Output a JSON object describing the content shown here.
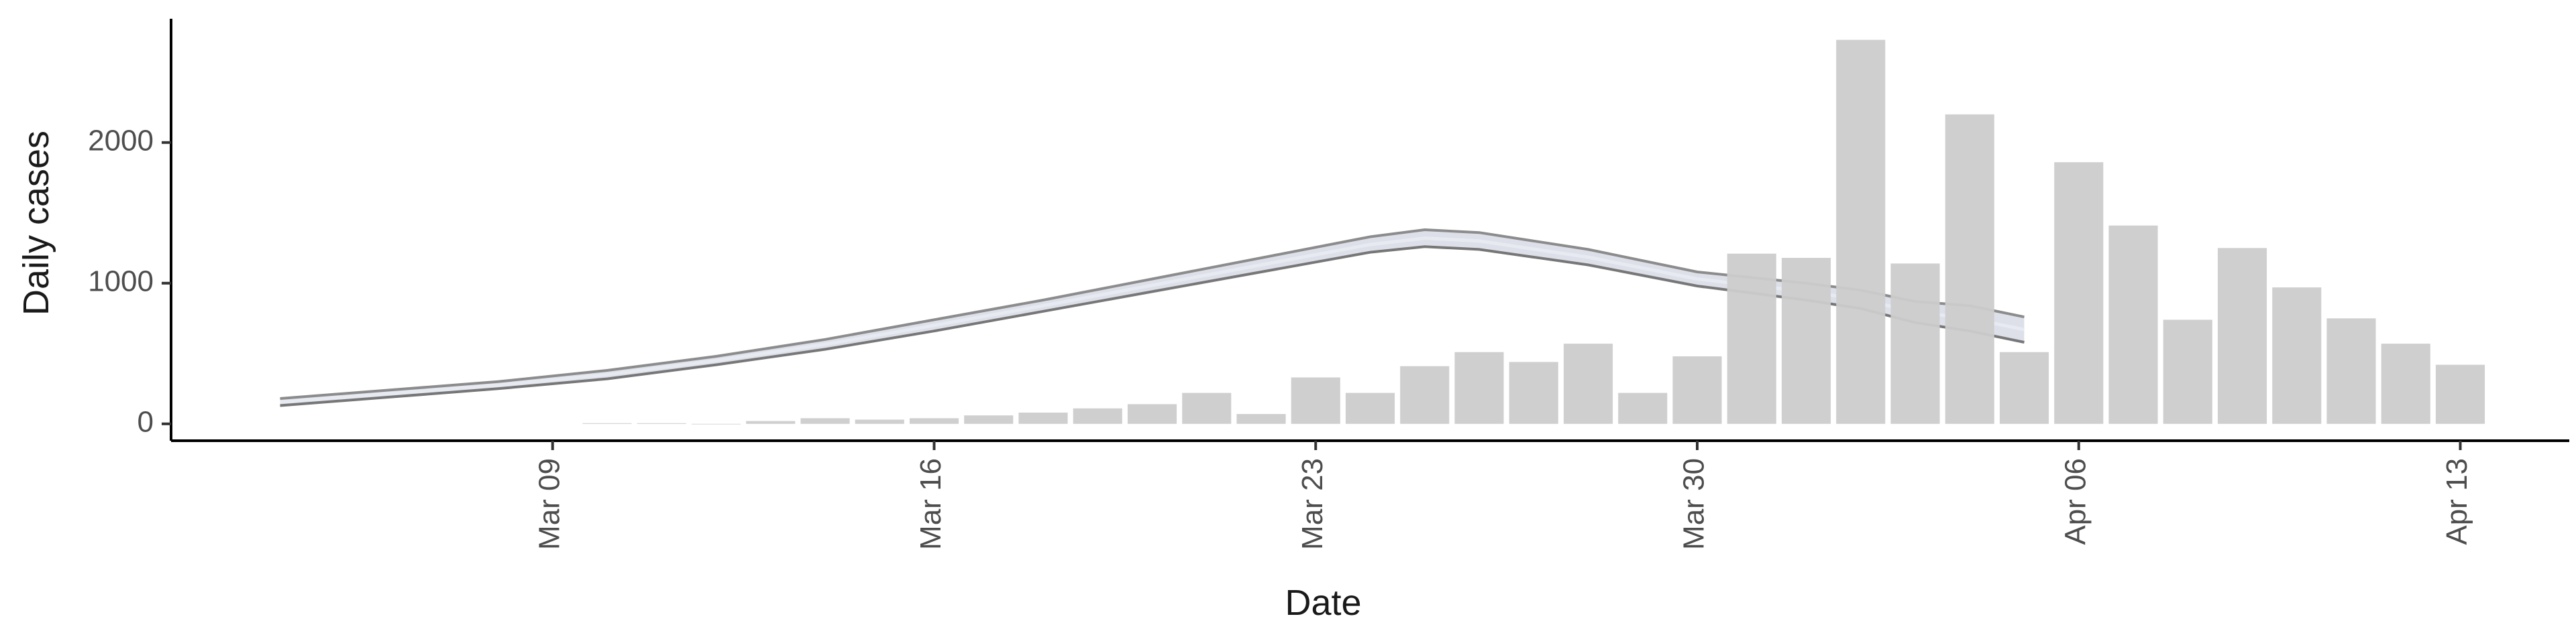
{
  "chart_data": {
    "type": "bar",
    "xlabel": "Date",
    "ylabel": "Daily cases",
    "xlim": [
      "2020-03-02",
      "2020-04-15"
    ],
    "ylim": [
      -120,
      2880
    ],
    "x_ticks": [
      {
        "date": "2020-03-09",
        "label": "Mar 09"
      },
      {
        "date": "2020-03-16",
        "label": "Mar 16"
      },
      {
        "date": "2020-03-23",
        "label": "Mar 23"
      },
      {
        "date": "2020-03-30",
        "label": "Mar 30"
      },
      {
        "date": "2020-04-06",
        "label": "Apr 06"
      },
      {
        "date": "2020-04-13",
        "label": "Apr 13"
      }
    ],
    "y_ticks": [
      0,
      1000,
      2000
    ],
    "grid": false,
    "bar_color": "#cccccc",
    "bars": {
      "dates": [
        "2020-03-10",
        "2020-03-11",
        "2020-03-12",
        "2020-03-13",
        "2020-03-14",
        "2020-03-15",
        "2020-03-16",
        "2020-03-17",
        "2020-03-18",
        "2020-03-19",
        "2020-03-20",
        "2020-03-21",
        "2020-03-22",
        "2020-03-23",
        "2020-03-24",
        "2020-03-25",
        "2020-03-26",
        "2020-03-27",
        "2020-03-28",
        "2020-03-29",
        "2020-03-30",
        "2020-03-31",
        "2020-04-01",
        "2020-04-02",
        "2020-04-03",
        "2020-04-04",
        "2020-04-05",
        "2020-04-06",
        "2020-04-07",
        "2020-04-08",
        "2020-04-09",
        "2020-04-10",
        "2020-04-11",
        "2020-04-12",
        "2020-04-13"
      ],
      "values": [
        5,
        5,
        0,
        20,
        40,
        30,
        40,
        60,
        80,
        110,
        140,
        220,
        70,
        330,
        220,
        410,
        510,
        440,
        570,
        220,
        480,
        1210,
        1180,
        2730,
        1140,
        2200,
        510,
        1860,
        1410,
        740,
        1250,
        970,
        750,
        570,
        420
      ]
    },
    "band": {
      "color": "#d2d6e2",
      "line_color": "#8c8c8c",
      "dates": [
        "2020-03-04",
        "2020-03-06",
        "2020-03-08",
        "2020-03-10",
        "2020-03-12",
        "2020-03-14",
        "2020-03-16",
        "2020-03-18",
        "2020-03-20",
        "2020-03-22",
        "2020-03-24",
        "2020-03-25",
        "2020-03-26",
        "2020-03-28",
        "2020-03-30",
        "2020-04-01",
        "2020-04-02",
        "2020-04-03",
        "2020-04-04",
        "2020-04-05"
      ],
      "upper": [
        180,
        240,
        300,
        380,
        480,
        600,
        740,
        880,
        1030,
        1180,
        1330,
        1380,
        1360,
        1240,
        1080,
        1000,
        950,
        870,
        840,
        760
      ],
      "lower": [
        130,
        190,
        250,
        320,
        420,
        530,
        660,
        800,
        940,
        1080,
        1220,
        1260,
        1240,
        1130,
        980,
        880,
        820,
        720,
        660,
        580
      ]
    }
  }
}
